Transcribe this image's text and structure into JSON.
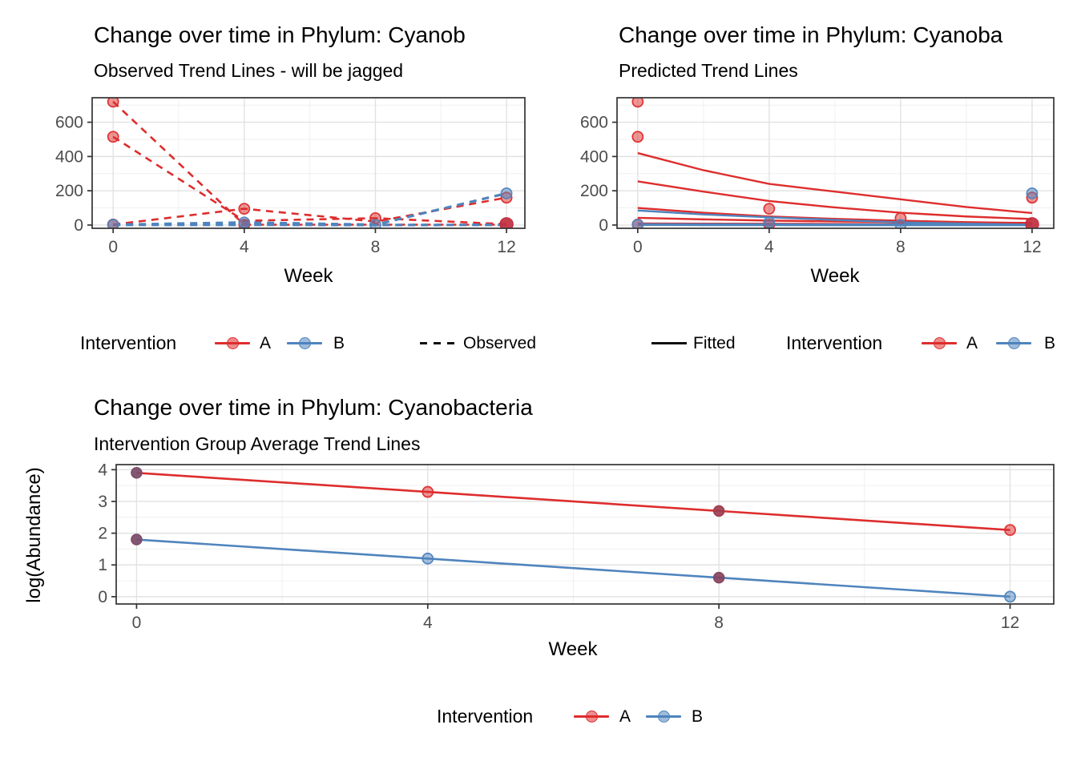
{
  "colors": {
    "red": "#DE2D2D",
    "blue": "#4F84BD",
    "dark_overlap_point": "#C22F3E",
    "grid_major": "#E2E2E2",
    "grid_minor": "#F0F0F0",
    "panel_border": "#333333",
    "tick_label": "#4D4D4D",
    "linetype_key": "#101010"
  },
  "legend_top_left": {
    "title": "Intervention",
    "item_a": "A",
    "item_b": "B",
    "linetype_label": "Observed"
  },
  "legend_top_right": {
    "linetype_label": "Fitted",
    "title": "Intervention",
    "item_a": "A",
    "item_b": "B"
  },
  "legend_bottom": {
    "title": "Intervention",
    "item_a": "A",
    "item_b": "B"
  },
  "chart_data": [
    {
      "type": "line",
      "id": "observed",
      "title": "Change over time in Phylum: Cyanob",
      "subtitle": "Observed Trend Lines - will be jagged",
      "xlabel": "Week",
      "ylabel": "",
      "xlim": [
        -0.64,
        12.56
      ],
      "ylim": [
        -19,
        743
      ],
      "xticks": [
        0,
        4,
        8,
        12
      ],
      "yticks": [
        0,
        200,
        400,
        600
      ],
      "xminor": [
        2,
        6,
        10
      ],
      "yminor": [
        100,
        300,
        500,
        700
      ],
      "grid": true,
      "legend_position": "bottom",
      "series": [
        {
          "name": "A-subject-1",
          "group": "A",
          "dash": true,
          "w": 2.6,
          "x": [
            0,
            4,
            8,
            12
          ],
          "y": [
            720,
            2,
            2,
            2
          ]
        },
        {
          "name": "A-subject-2",
          "group": "A",
          "dash": true,
          "w": 2.6,
          "x": [
            0,
            4,
            8,
            12
          ],
          "y": [
            515,
            25,
            40,
            5
          ]
        },
        {
          "name": "A-subject-3",
          "group": "A",
          "dash": true,
          "w": 2.6,
          "x": [
            0,
            4,
            8,
            12
          ],
          "y": [
            3,
            95,
            20,
            160
          ]
        },
        {
          "name": "B-subject-1",
          "group": "B",
          "dash": true,
          "w": 3.2,
          "x": [
            0,
            4,
            8,
            12
          ],
          "y": [
            2,
            15,
            2,
            185
          ]
        },
        {
          "name": "B-subject-2",
          "group": "B",
          "dash": true,
          "w": 3.2,
          "x": [
            0,
            4,
            8,
            12
          ],
          "y": [
            1,
            1,
            0,
            1
          ]
        }
      ],
      "points": [
        {
          "x": 0,
          "y": 720,
          "g": "A"
        },
        {
          "x": 0,
          "y": 515,
          "g": "A"
        },
        {
          "x": 0,
          "y": 3,
          "g": "A"
        },
        {
          "x": 4,
          "y": 95,
          "g": "A"
        },
        {
          "x": 4,
          "y": 2,
          "g": "A"
        },
        {
          "x": 8,
          "y": 40,
          "g": "A"
        },
        {
          "x": 12,
          "y": 160,
          "g": "A"
        },
        {
          "x": 12,
          "y": 5,
          "g": "A",
          "dark": "#C22F3E",
          "r": 8
        },
        {
          "x": 0,
          "y": 2,
          "g": "B"
        },
        {
          "x": 4,
          "y": 15,
          "g": "B"
        },
        {
          "x": 8,
          "y": 1,
          "g": "B"
        },
        {
          "x": 12,
          "y": 185,
          "g": "B"
        }
      ]
    },
    {
      "type": "line",
      "id": "predicted",
      "title": "Change over time in Phylum: Cyanoba",
      "subtitle": "Predicted Trend Lines",
      "xlabel": "Week",
      "ylabel": "",
      "xlim": [
        -0.63,
        12.66
      ],
      "ylim": [
        -19,
        743
      ],
      "xticks": [
        0,
        4,
        8,
        12
      ],
      "yticks": [
        0,
        200,
        400,
        600
      ],
      "xminor": [
        2,
        6,
        10
      ],
      "yminor": [
        100,
        300,
        500,
        700
      ],
      "grid": true,
      "legend_position": "bottom",
      "series": [
        {
          "name": "A-fitted-1",
          "group": "A",
          "dash": false,
          "w": 2.4,
          "x": [
            0,
            2,
            4,
            6,
            8,
            10,
            12
          ],
          "y": [
            420,
            320,
            240,
            195,
            150,
            105,
            70
          ]
        },
        {
          "name": "A-fitted-2",
          "group": "A",
          "dash": false,
          "w": 2.4,
          "x": [
            0,
            2,
            4,
            6,
            8,
            10,
            12
          ],
          "y": [
            255,
            195,
            140,
            103,
            72,
            50,
            35
          ]
        },
        {
          "name": "A-fitted-3",
          "group": "A",
          "dash": false,
          "w": 2.4,
          "x": [
            0,
            2,
            4,
            6,
            8,
            10,
            12
          ],
          "y": [
            100,
            72,
            50,
            36,
            25,
            17,
            12
          ]
        },
        {
          "name": "A-fitted-4",
          "group": "A",
          "dash": false,
          "w": 2.4,
          "x": [
            0,
            2,
            4,
            6,
            8,
            9.7
          ],
          "y": [
            42,
            33,
            26,
            21,
            18,
            17
          ]
        },
        {
          "name": "A-fitted-5",
          "group": "A",
          "dash": false,
          "w": 3.0,
          "x": [
            0,
            2,
            4,
            6,
            8,
            10,
            12
          ],
          "y": [
            8,
            7,
            6,
            5,
            5,
            4,
            4
          ]
        },
        {
          "name": "B-fitted-1",
          "group": "B",
          "dash": false,
          "w": 2.4,
          "x": [
            0,
            2,
            4,
            6,
            8,
            10,
            12
          ],
          "y": [
            85,
            62,
            45,
            30,
            16,
            8,
            2
          ]
        },
        {
          "name": "B-fitted-2",
          "group": "B",
          "dash": false,
          "w": 3.4,
          "x": [
            0,
            2,
            4,
            6,
            8,
            10,
            12
          ],
          "y": [
            3,
            2,
            2,
            1,
            1,
            1,
            1
          ]
        }
      ],
      "points": [
        {
          "x": 0,
          "y": 720,
          "g": "A"
        },
        {
          "x": 0,
          "y": 515,
          "g": "A"
        },
        {
          "x": 0,
          "y": 3,
          "g": "A"
        },
        {
          "x": 4,
          "y": 95,
          "g": "A"
        },
        {
          "x": 4,
          "y": 2,
          "g": "A"
        },
        {
          "x": 8,
          "y": 40,
          "g": "A"
        },
        {
          "x": 12,
          "y": 160,
          "g": "A"
        },
        {
          "x": 12,
          "y": 5,
          "g": "A",
          "dark": "#C22F3E",
          "r": 8
        },
        {
          "x": 0,
          "y": 2,
          "g": "B"
        },
        {
          "x": 4,
          "y": 15,
          "g": "B"
        },
        {
          "x": 8,
          "y": 1,
          "g": "B"
        },
        {
          "x": 12,
          "y": 185,
          "g": "B"
        }
      ]
    },
    {
      "type": "line",
      "id": "average",
      "title": "Change over time in Phylum: Cyanobacteria",
      "subtitle": "Intervention Group Average Trend Lines",
      "xlabel": "Week",
      "ylabel": "log(Abundance)",
      "xlim": [
        -0.28,
        12.6
      ],
      "ylim": [
        -0.23,
        4.16
      ],
      "xticks": [
        0,
        4,
        8,
        12
      ],
      "yticks": [
        0,
        1,
        2,
        3,
        4
      ],
      "xminor": [
        2,
        6,
        10
      ],
      "yminor": [
        0.5,
        1.5,
        2.5,
        3.5
      ],
      "grid": true,
      "legend_position": "bottom",
      "series": [
        {
          "name": "A-average",
          "group": "A",
          "dash": false,
          "w": 2.6,
          "x": [
            0,
            4,
            8,
            12
          ],
          "y": [
            3.9,
            3.3,
            2.7,
            2.1
          ]
        },
        {
          "name": "B-average",
          "group": "B",
          "dash": false,
          "w": 2.6,
          "x": [
            0,
            4,
            8,
            12
          ],
          "y": [
            1.8,
            1.2,
            0.6,
            0.0
          ]
        }
      ],
      "points": [
        {
          "x": 0,
          "y": 3.9,
          "g": "A",
          "dark": "#7A4A68"
        },
        {
          "x": 4,
          "y": 3.3,
          "g": "A"
        },
        {
          "x": 8,
          "y": 2.7,
          "g": "A",
          "dark": "#9E3C50"
        },
        {
          "x": 12,
          "y": 2.1,
          "g": "A"
        },
        {
          "x": 0,
          "y": 1.8,
          "g": "B",
          "dark": "#7A4A68"
        },
        {
          "x": 4,
          "y": 1.2,
          "g": "B"
        },
        {
          "x": 8,
          "y": 0.6,
          "g": "B",
          "dark": "#85445E"
        },
        {
          "x": 12,
          "y": 0.0,
          "g": "B"
        }
      ]
    }
  ]
}
